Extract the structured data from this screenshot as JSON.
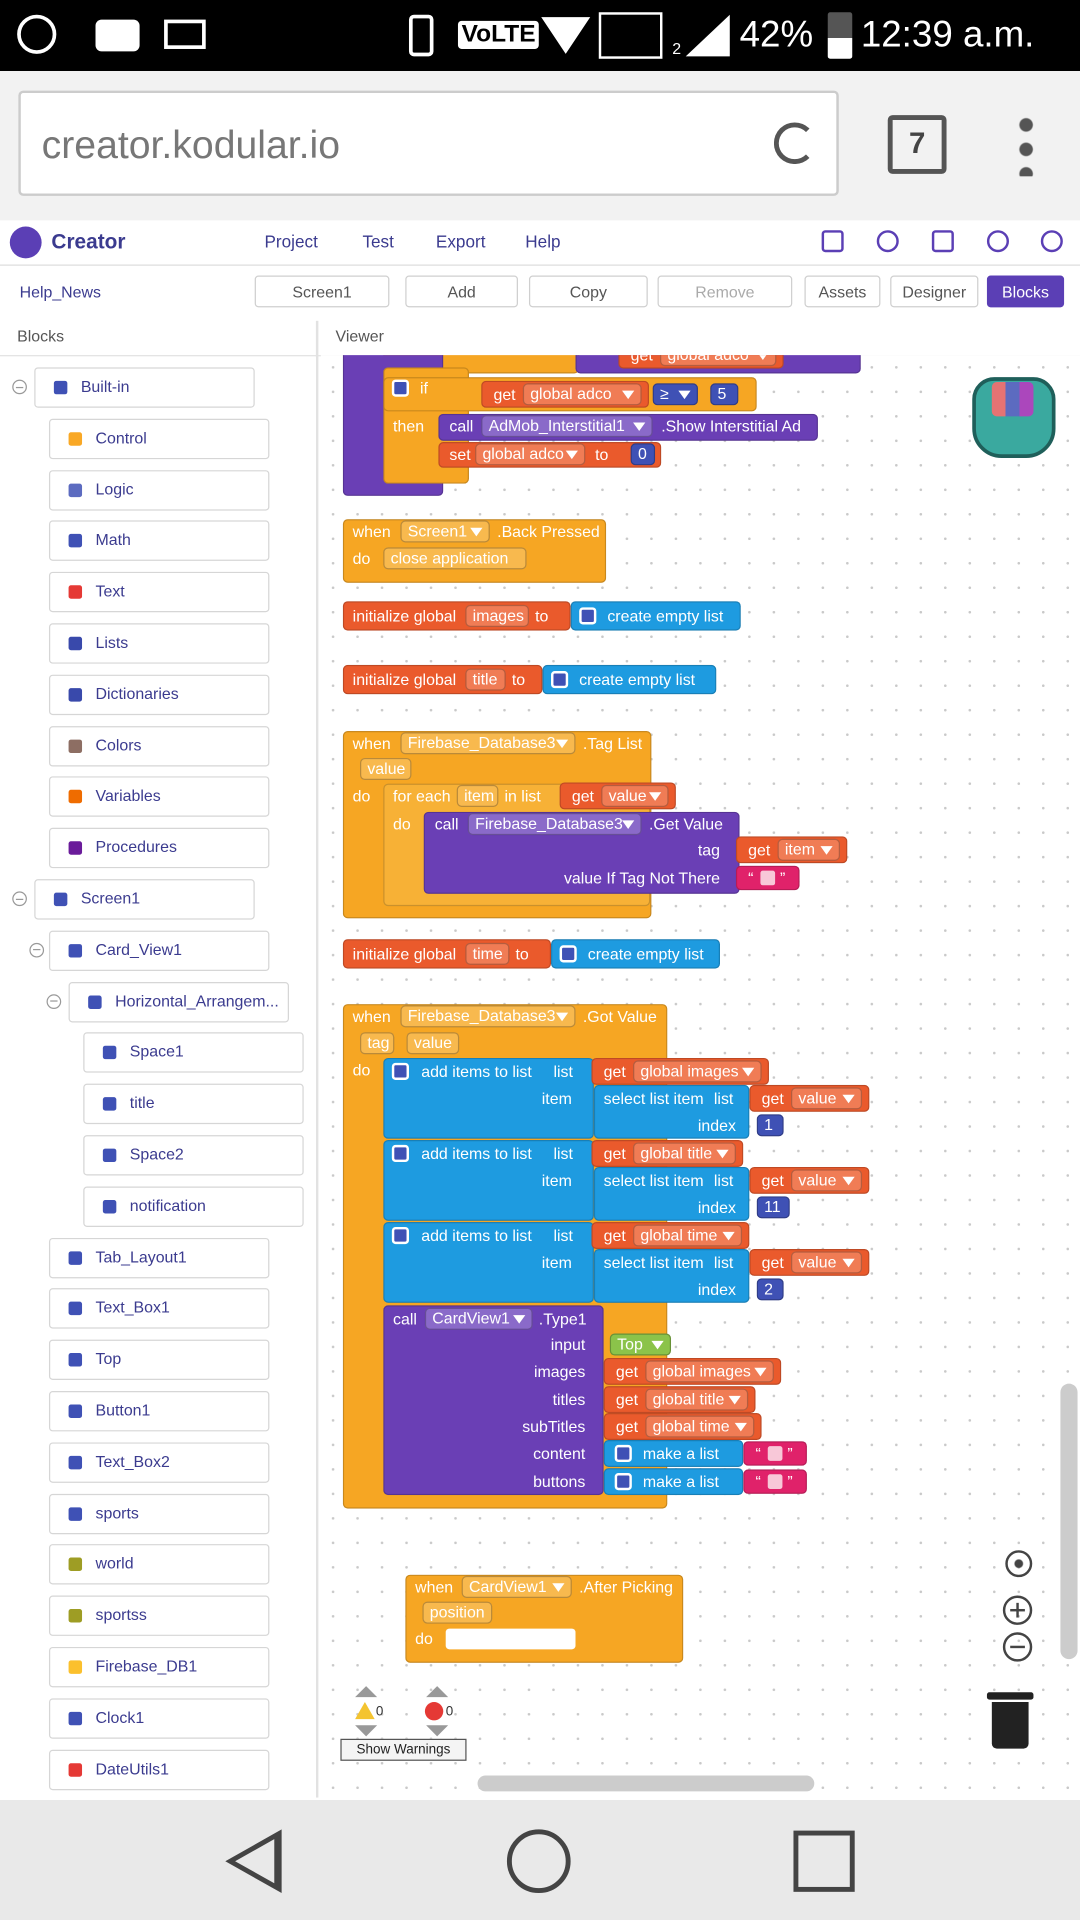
{
  "status_bar": {
    "volte": "VoLTE",
    "sim": "2",
    "battery": "42%",
    "time": "12:39 a.m."
  },
  "browser": {
    "url": "creator.kodular.io",
    "tabs": 7
  },
  "app": {
    "brand": "Creator",
    "menu": [
      "Project",
      "Test",
      "Export",
      "Help"
    ],
    "project": "Help_News",
    "screen": "Screen1",
    "add": "Add",
    "copy": "Copy",
    "remove": "Remove",
    "assets": "Assets",
    "designer": "Designer",
    "blocks": "Blocks"
  },
  "panels": {
    "blocks": "Blocks",
    "viewer": "Viewer"
  },
  "tree": [
    "Built-in",
    "Control",
    "Logic",
    "Math",
    "Text",
    "Lists",
    "Dictionaries",
    "Colors",
    "Variables",
    "Procedures",
    "Screen1",
    "Card_View1",
    "Horizontal_Arrangem...",
    "Space1",
    "title",
    "Space2",
    "notification",
    "Tab_Layout1",
    "Text_Box1",
    "Top",
    "Button1",
    "Text_Box2",
    "sports",
    "world",
    "sportss",
    "Firebase_DB1",
    "Clock1",
    "DateUtils1"
  ],
  "workspace": {
    "adco": {
      "top_get": "get",
      "top_var": "global adco",
      "if": "if",
      "get": "get",
      "var": "global adco",
      "op": "≥",
      "num": 5,
      "then": "then",
      "call": "call",
      "component": "AdMob_Interstitial1",
      "method": ".Show Interstitial Ad",
      "set": "set",
      "set_var": "global adco",
      "to": "to",
      "value": 0
    },
    "back": {
      "when": "when",
      "component": "Screen1",
      "event": ".Back Pressed",
      "do": "do",
      "action": "close application"
    },
    "init_images": {
      "label": "initialize global",
      "name": "images",
      "to": "to",
      "value": "create empty list"
    },
    "init_title": {
      "label": "initialize global",
      "name": "title",
      "to": "to",
      "value": "create empty list"
    },
    "tag_list": {
      "when": "when",
      "component": "Firebase_Database3",
      "event": ".Tag List",
      "param": "value",
      "do": "do",
      "for_each": "for each",
      "var": "item",
      "in_list": "in list",
      "get": "get",
      "list_var": "value",
      "do_inner": "do",
      "call": "call",
      "component_call": "Firebase_Database3",
      "method": ".Get Value",
      "tag": "tag",
      "tag_get": "get",
      "tag_var": "item",
      "default": "value If Tag Not There",
      "quote_open": "“",
      "quote_close": "”"
    },
    "init_time": {
      "label": "initialize global",
      "name": "time",
      "to": "to",
      "value": "create empty list"
    },
    "got_value": {
      "when": "when",
      "component": "Firebase_Database3",
      "event": ".Got Value",
      "params": [
        "tag",
        "value"
      ],
      "do": "do",
      "adds": [
        {
          "label": "add items to list",
          "list": "list",
          "get": "get",
          "var": "global images",
          "item": "item",
          "select": "select list item",
          "select_list": "list",
          "select_get": "get",
          "select_var": "value",
          "index": "index",
          "index_value": 1
        },
        {
          "label": "add items to list",
          "list": "list",
          "get": "get",
          "var": "global title",
          "item": "item",
          "select": "select list item",
          "select_list": "list",
          "select_get": "get",
          "select_var": "value",
          "index": "index",
          "index_value": 11
        },
        {
          "label": "add items to list",
          "list": "list",
          "get": "get",
          "var": "global time",
          "item": "item",
          "select": "select list item",
          "select_list": "list",
          "select_get": "get",
          "select_var": "value",
          "index": "index",
          "index_value": 2
        }
      ],
      "call": "call",
      "component_call": "CardView1",
      "method": ".Type1",
      "args": [
        {
          "name": "input",
          "text": "Top"
        },
        {
          "name": "images",
          "get": "get",
          "var": "global images"
        },
        {
          "name": "titles",
          "get": "get",
          "var": "global title"
        },
        {
          "name": "subTitles",
          "get": "get",
          "var": "global time"
        },
        {
          "name": "content",
          "make": "make a list",
          "quote_open": "“",
          "quote_close": "”"
        },
        {
          "name": "buttons",
          "make": "make a list",
          "quote_open": "“",
          "quote_close": "”"
        }
      ]
    },
    "after": {
      "when": "when",
      "component": "CardView1",
      "event": ".After Picking",
      "param": "position",
      "do": "do"
    }
  },
  "warnings": {
    "warning_count": 0,
    "error_count": 0,
    "button": "Show Warnings"
  }
}
